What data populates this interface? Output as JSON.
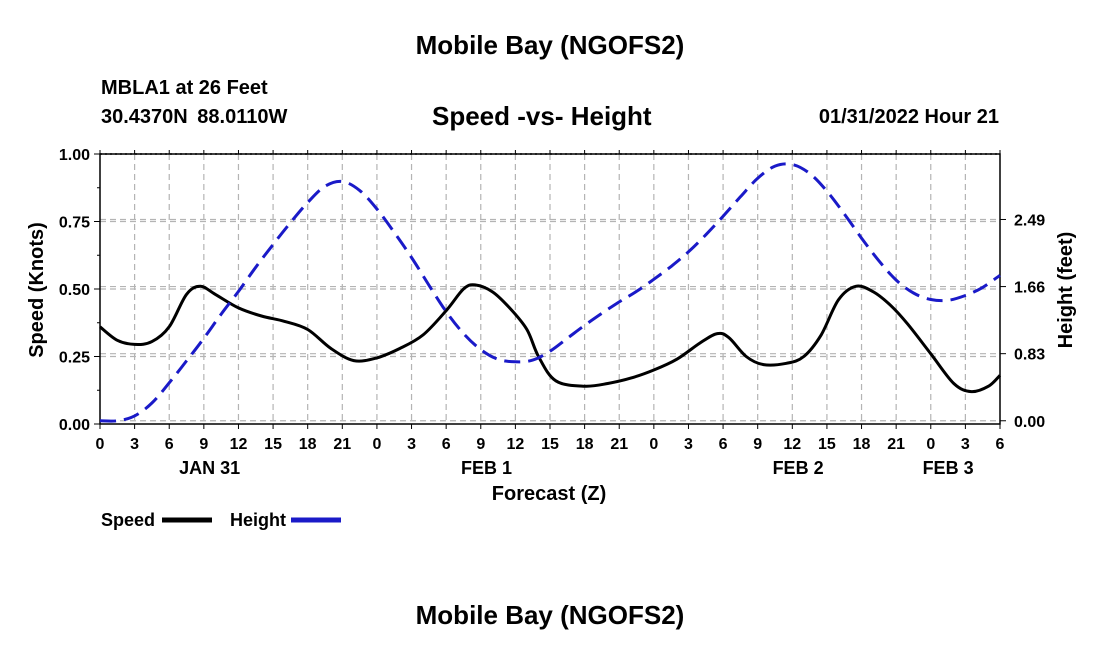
{
  "header": {
    "title": "Mobile Bay (NGOFS2)",
    "station": "MBLA1 at 26 Feet",
    "location": "30.4370N  88.0110W",
    "subtitle": "Speed -vs- Height",
    "datetime": "01/31/2022 Hour 21"
  },
  "footer": {
    "title": "Mobile Bay (NGOFS2)"
  },
  "colors": {
    "speed": "#000000",
    "height": "#1a1ac8",
    "grid": "#b4b4b4"
  },
  "chart_data": {
    "type": "line",
    "xlabel": "Forecast (Z)",
    "ylabel_left": "Speed (Knots)",
    "ylabel_right": "Height (feet)",
    "x_range_hours": [
      0,
      78
    ],
    "x_tick_labels": [
      "0",
      "3",
      "6",
      "9",
      "12",
      "15",
      "18",
      "21",
      "0",
      "3",
      "6",
      "9",
      "12",
      "15",
      "18",
      "21",
      "0",
      "3",
      "6",
      "9",
      "12",
      "15",
      "18",
      "21",
      "0",
      "3",
      "6"
    ],
    "date_labels": [
      {
        "label": "JAN 31",
        "hour": 9.5
      },
      {
        "label": "FEB 1",
        "hour": 33.5
      },
      {
        "label": "FEB 2",
        "hour": 60.5
      },
      {
        "label": "FEB 3",
        "hour": 73.5
      }
    ],
    "left_axis": {
      "min": 0,
      "max": 1,
      "ticks": [
        0,
        0.25,
        0.5,
        0.75,
        1.0
      ],
      "tick_labels": [
        "0.00",
        "0.25",
        "0.50",
        "0.75",
        "1.00"
      ]
    },
    "right_axis": {
      "min": -0.04,
      "max": 3.3,
      "ticks": [
        0,
        0.83,
        1.66,
        2.49
      ],
      "tick_labels": [
        "0.00",
        "0.83",
        "1.66",
        "2.49"
      ]
    },
    "grid": true,
    "legend": {
      "position": "bottom-left",
      "speed_label": "Speed",
      "height_label": "Height"
    },
    "series": [
      {
        "name": "Speed",
        "axis": "left",
        "style": "solid",
        "points": [
          [
            0,
            0.36
          ],
          [
            1.5,
            0.31
          ],
          [
            3,
            0.295
          ],
          [
            4.5,
            0.305
          ],
          [
            6,
            0.36
          ],
          [
            7.5,
            0.48
          ],
          [
            8.7,
            0.51
          ],
          [
            10,
            0.48
          ],
          [
            12,
            0.43
          ],
          [
            14,
            0.4
          ],
          [
            16,
            0.38
          ],
          [
            18,
            0.35
          ],
          [
            20,
            0.28
          ],
          [
            22,
            0.235
          ],
          [
            24,
            0.245
          ],
          [
            26,
            0.28
          ],
          [
            28,
            0.33
          ],
          [
            30,
            0.42
          ],
          [
            31.5,
            0.5
          ],
          [
            32.5,
            0.515
          ],
          [
            34,
            0.49
          ],
          [
            35.5,
            0.43
          ],
          [
            37,
            0.35
          ],
          [
            38,
            0.25
          ],
          [
            39.5,
            0.16
          ],
          [
            42,
            0.14
          ],
          [
            44,
            0.15
          ],
          [
            46,
            0.17
          ],
          [
            48,
            0.2
          ],
          [
            50,
            0.24
          ],
          [
            52,
            0.3
          ],
          [
            53.5,
            0.335
          ],
          [
            54.5,
            0.32
          ],
          [
            56,
            0.25
          ],
          [
            57.5,
            0.22
          ],
          [
            59.5,
            0.225
          ],
          [
            61,
            0.25
          ],
          [
            62.5,
            0.33
          ],
          [
            64,
            0.46
          ],
          [
            65.5,
            0.51
          ],
          [
            67,
            0.49
          ],
          [
            68.5,
            0.44
          ],
          [
            70,
            0.37
          ],
          [
            72,
            0.26
          ],
          [
            74,
            0.15
          ],
          [
            75.5,
            0.12
          ],
          [
            77,
            0.14
          ],
          [
            78,
            0.18
          ]
        ]
      },
      {
        "name": "Height",
        "axis": "right",
        "style": "dashed",
        "points": [
          [
            0,
            0.0
          ],
          [
            1.5,
            0.0
          ],
          [
            3,
            0.06
          ],
          [
            4.5,
            0.22
          ],
          [
            6,
            0.47
          ],
          [
            7.5,
            0.74
          ],
          [
            9,
            1.02
          ],
          [
            10.5,
            1.32
          ],
          [
            12,
            1.6
          ],
          [
            13.5,
            1.9
          ],
          [
            15,
            2.18
          ],
          [
            16.5,
            2.45
          ],
          [
            18,
            2.7
          ],
          [
            19.5,
            2.9
          ],
          [
            21,
            2.96
          ],
          [
            22.5,
            2.85
          ],
          [
            24,
            2.62
          ],
          [
            25.5,
            2.33
          ],
          [
            27,
            2.02
          ],
          [
            28.5,
            1.68
          ],
          [
            30,
            1.35
          ],
          [
            31.5,
            1.08
          ],
          [
            33,
            0.88
          ],
          [
            34.5,
            0.76
          ],
          [
            36,
            0.73
          ],
          [
            37.5,
            0.75
          ],
          [
            39,
            0.86
          ],
          [
            40.5,
            1.02
          ],
          [
            42,
            1.18
          ],
          [
            43.5,
            1.33
          ],
          [
            45,
            1.47
          ],
          [
            46.5,
            1.6
          ],
          [
            48,
            1.75
          ],
          [
            49.5,
            1.91
          ],
          [
            51,
            2.09
          ],
          [
            52.5,
            2.3
          ],
          [
            54,
            2.53
          ],
          [
            55.5,
            2.77
          ],
          [
            57,
            3.0
          ],
          [
            58.5,
            3.15
          ],
          [
            60,
            3.17
          ],
          [
            61.5,
            3.06
          ],
          [
            63,
            2.84
          ],
          [
            64.5,
            2.56
          ],
          [
            66,
            2.26
          ],
          [
            67.5,
            1.98
          ],
          [
            69,
            1.74
          ],
          [
            70.5,
            1.58
          ],
          [
            72,
            1.5
          ],
          [
            73.5,
            1.49
          ],
          [
            75,
            1.55
          ],
          [
            76.5,
            1.65
          ],
          [
            78,
            1.8
          ]
        ]
      }
    ]
  }
}
